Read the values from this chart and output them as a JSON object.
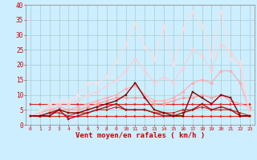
{
  "xlabel": "Vent moyen/en rafales ( km/h )",
  "x": [
    0,
    1,
    2,
    3,
    4,
    5,
    6,
    7,
    8,
    9,
    10,
    11,
    12,
    13,
    14,
    15,
    16,
    17,
    18,
    19,
    20,
    21,
    22,
    23
  ],
  "series": [
    {
      "y": [
        3,
        3,
        3,
        3,
        3,
        3,
        3,
        3,
        3,
        3,
        3,
        3,
        3,
        3,
        3,
        3,
        3,
        3,
        3,
        3,
        3,
        3,
        3,
        3
      ],
      "color": "#dd2222",
      "lw": 0.8,
      "marker": ">",
      "ms": 2.0
    },
    {
      "y": [
        7,
        7,
        7,
        7,
        7,
        7,
        7,
        7,
        7,
        7,
        7,
        7,
        7,
        7,
        7,
        7,
        7,
        7,
        7,
        7,
        7,
        7,
        7,
        7
      ],
      "color": "#dd2222",
      "lw": 0.8,
      "marker": ">",
      "ms": 2.0
    },
    {
      "y": [
        3,
        3,
        4,
        4,
        3,
        4,
        4,
        5,
        5,
        6,
        5,
        5,
        5,
        4,
        4,
        4,
        5,
        5,
        6,
        5,
        5,
        5,
        4,
        3
      ],
      "color": "#cc2222",
      "lw": 0.8,
      "marker": ">",
      "ms": 2.0
    },
    {
      "y": [
        3,
        4,
        5,
        5,
        5,
        5,
        6,
        7,
        8,
        9,
        9,
        9,
        9,
        7,
        7,
        8,
        9,
        9,
        10,
        9,
        10,
        8,
        7,
        6
      ],
      "color": "#ff9999",
      "lw": 0.8,
      "marker": "D",
      "ms": 2.0
    },
    {
      "y": [
        3,
        4,
        5,
        6,
        5,
        6,
        7,
        8,
        9,
        10,
        12,
        13,
        10,
        8,
        8,
        9,
        11,
        14,
        15,
        14,
        18,
        18,
        14,
        5
      ],
      "color": "#ffaaaa",
      "lw": 0.8,
      "marker": "D",
      "ms": 2.0
    },
    {
      "y": [
        3,
        4,
        6,
        7,
        7,
        8,
        10,
        11,
        13,
        15,
        18,
        22,
        18,
        14,
        16,
        14,
        19,
        25,
        23,
        18,
        27,
        24,
        20,
        3
      ],
      "color": "#ffcccc",
      "lw": 0.8,
      "marker": "D",
      "ms": 2.0
    },
    {
      "y": [
        3,
        5,
        7,
        8,
        8,
        10,
        14,
        14,
        16,
        21,
        27,
        34,
        26,
        22,
        33,
        20,
        32,
        38,
        33,
        23,
        38,
        22,
        21,
        4
      ],
      "color": "#ffdddd",
      "lw": 0.8,
      "marker": "D",
      "ms": 2.0
    },
    {
      "y": [
        3,
        3,
        4,
        5,
        2,
        3,
        4,
        5,
        6,
        7,
        5,
        5,
        5,
        4,
        3,
        3,
        4,
        5,
        7,
        5,
        6,
        5,
        3,
        3
      ],
      "color": "#aa1111",
      "lw": 1.0,
      "marker": "s",
      "ms": 2.0
    },
    {
      "y": [
        3,
        3,
        3,
        5,
        4,
        4,
        5,
        6,
        7,
        8,
        10,
        14,
        9,
        5,
        4,
        3,
        3,
        11,
        9,
        7,
        10,
        9,
        3,
        3
      ],
      "color": "#880000",
      "lw": 1.0,
      "marker": "s",
      "ms": 2.0
    }
  ],
  "ylim": [
    0,
    40
  ],
  "yticks": [
    0,
    5,
    10,
    15,
    20,
    25,
    30,
    35,
    40
  ],
  "bg_color": "#cceeff",
  "grid_color": "#aacccc",
  "tick_color": "#cc0000",
  "label_color": "#cc0000"
}
